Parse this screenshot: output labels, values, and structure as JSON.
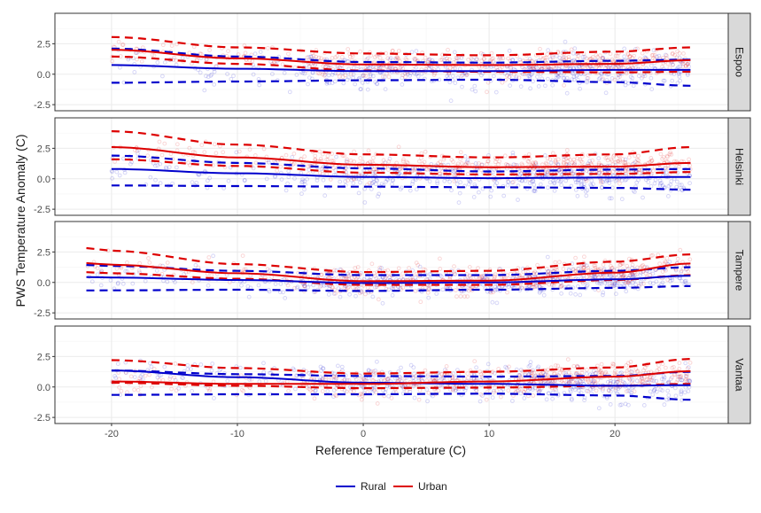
{
  "chart_data": {
    "type": "scatter",
    "facet_layout": "vertical",
    "xlabel": "Reference Temperature (C)",
    "ylabel": "PWS Temperature Anomaly (C)",
    "xlim": [
      -24.5,
      29
    ],
    "ylim": [
      -3.0,
      5.0
    ],
    "x_ticks": [
      -20,
      -10,
      0,
      10,
      20
    ],
    "x_tick_labels": [
      "-20",
      "-10",
      "0",
      "10",
      "20"
    ],
    "y_ticks": [
      -2.5,
      0,
      2.5
    ],
    "y_tick_labels": [
      "-2.5",
      "0.0",
      "2.5"
    ],
    "grid": true,
    "legend": {
      "position": "bottom",
      "entries": [
        "Rural",
        "Urban"
      ]
    },
    "colors": {
      "Rural": "#0000cc",
      "Urban": "#dd0000",
      "strip_bg": "#d9d9d9",
      "grid_major": "#ebebeb",
      "grid_minor": "#f5f5f5",
      "panel_border": "#333333"
    },
    "series_names": [
      "Rural",
      "Urban"
    ],
    "curve_x": [
      -20,
      -10,
      0,
      10,
      20,
      26
    ],
    "panels": [
      {
        "label": "Espoo",
        "x_range": [
          -20,
          26
        ],
        "rural_spread": 1.3,
        "urban_spread": 1.0,
        "rural": {
          "mean": [
            0.75,
            0.45,
            0.25,
            0.25,
            0.35,
            0.35
          ],
          "upper": [
            2.1,
            1.45,
            1.0,
            0.95,
            1.1,
            1.2
          ],
          "lower": [
            -0.7,
            -0.6,
            -0.5,
            -0.45,
            -0.65,
            -0.95
          ]
        },
        "urban": {
          "mean": [
            2.0,
            1.3,
            0.8,
            0.75,
            0.85,
            1.15
          ],
          "upper": [
            3.05,
            2.2,
            1.7,
            1.55,
            1.85,
            2.2
          ],
          "lower": [
            1.45,
            0.85,
            0.3,
            0.2,
            0.15,
            0.2
          ]
        }
      },
      {
        "label": "Helsinki",
        "x_range": [
          -20,
          26
        ],
        "rural_spread": 1.3,
        "urban_spread": 1.0,
        "rural": {
          "mean": [
            0.8,
            0.45,
            0.15,
            0.05,
            0.1,
            0.15
          ],
          "upper": [
            1.9,
            1.3,
            0.85,
            0.6,
            0.75,
            0.8
          ],
          "lower": [
            -0.55,
            -0.6,
            -0.65,
            -0.7,
            -0.75,
            -0.9
          ]
        },
        "urban": {
          "mean": [
            2.6,
            1.75,
            1.15,
            0.95,
            1.0,
            1.3
          ],
          "upper": [
            3.9,
            2.8,
            2.0,
            1.75,
            2.0,
            2.6
          ],
          "lower": [
            1.6,
            1.05,
            0.5,
            0.35,
            0.4,
            0.55
          ]
        }
      },
      {
        "label": "Tampere",
        "x_range": [
          -22,
          26
        ],
        "rural_spread": 1.0,
        "urban_spread": 1.0,
        "rural": {
          "mean": [
            0.4,
            0.2,
            -0.05,
            0.0,
            0.25,
            0.55
          ],
          "upper": [
            1.35,
            0.95,
            0.6,
            0.6,
            0.95,
            1.25
          ],
          "lower": [
            -0.65,
            -0.6,
            -0.7,
            -0.6,
            -0.45,
            -0.3
          ]
        },
        "urban": {
          "mean": [
            1.45,
            0.75,
            0.1,
            0.15,
            0.8,
            1.55
          ],
          "upper": [
            2.6,
            1.5,
            0.85,
            0.95,
            1.7,
            2.3
          ],
          "lower": [
            0.75,
            0.3,
            -0.2,
            -0.2,
            0.2,
            0.6
          ]
        }
      },
      {
        "label": "Vantaa",
        "x_range": [
          -20,
          26
        ],
        "rural_spread": 1.2,
        "urban_spread": 1.0,
        "rural": {
          "mean": [
            1.35,
            0.8,
            0.35,
            0.25,
            0.1,
            0.15
          ],
          "upper": [
            1.35,
            1.05,
            0.9,
            0.85,
            0.9,
            1.25
          ],
          "lower": [
            -0.65,
            -0.6,
            -0.6,
            -0.55,
            -0.7,
            -1.05
          ]
        },
        "urban": {
          "mean": [
            0.45,
            0.25,
            0.25,
            0.45,
            0.85,
            1.3
          ],
          "upper": [
            2.2,
            1.55,
            1.1,
            1.25,
            1.6,
            2.3
          ],
          "lower": [
            0.35,
            0.1,
            -0.1,
            -0.05,
            0.1,
            0.25
          ]
        }
      }
    ]
  }
}
